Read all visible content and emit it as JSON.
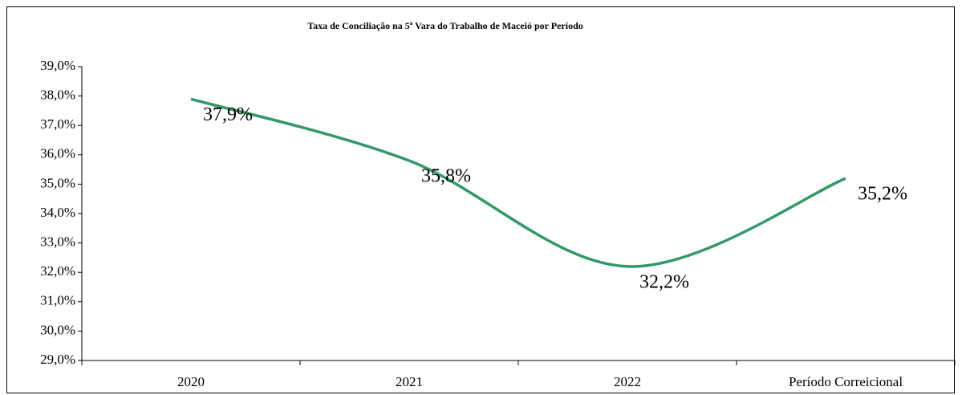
{
  "chart_data": {
    "type": "line",
    "title": "Taxa de Conciliação na 5ª Vara do Trabalho de Maceió por Período",
    "categories": [
      "2020",
      "2021",
      "2022",
      "Período Correicional"
    ],
    "series": [
      {
        "name": "Taxa de Conciliação",
        "color": "#339966",
        "values": [
          37.9,
          35.8,
          32.2,
          35.2
        ],
        "value_labels": [
          "37,9%",
          "35,8%",
          "32,2%",
          "35,2%"
        ]
      }
    ],
    "ylim": [
      29,
      39
    ],
    "yticks": [
      {
        "value": 29,
        "label": "29,0%"
      },
      {
        "value": 30,
        "label": "30,0%"
      },
      {
        "value": 31,
        "label": "31,0%"
      },
      {
        "value": 32,
        "label": "32,0%"
      },
      {
        "value": 33,
        "label": "33,0%"
      },
      {
        "value": 34,
        "label": "34,0%"
      },
      {
        "value": 35,
        "label": "35,0%"
      },
      {
        "value": 36,
        "label": "36,0%"
      },
      {
        "value": 37,
        "label": "37,0%"
      },
      {
        "value": 38,
        "label": "38,0%"
      },
      {
        "value": 39,
        "label": "39,0%"
      }
    ],
    "smooth": true,
    "grid": false
  }
}
